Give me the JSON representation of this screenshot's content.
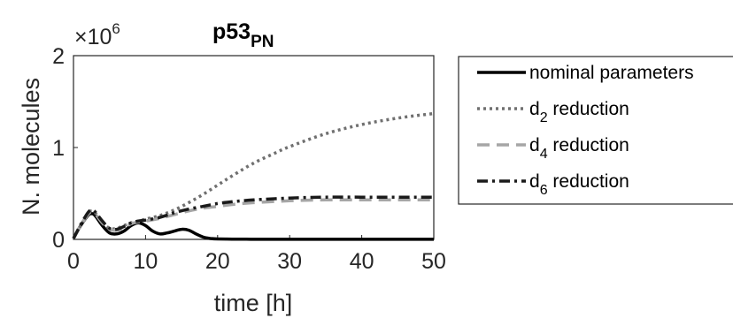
{
  "chart_data": {
    "type": "line",
    "title": "p53",
    "title_subscript": "PN",
    "xlabel": "time [h]",
    "ylabel": "N. molecules",
    "y_multiplier": "×10",
    "y_multiplier_exp": "6",
    "xlim": [
      0,
      50
    ],
    "ylim": [
      0,
      2000000
    ],
    "x_ticks": [
      0,
      10,
      20,
      30,
      40,
      50
    ],
    "x_tick_labels": [
      "0",
      "10",
      "20",
      "30",
      "40",
      "50"
    ],
    "y_ticks": [
      0,
      1000000,
      2000000
    ],
    "y_tick_labels": [
      "0",
      "1",
      "2"
    ],
    "grid": false,
    "legend_position": "outside right",
    "series": [
      {
        "name": "nominal parameters",
        "name_subscript": "",
        "name_prefix": "",
        "name_suffix": "",
        "color": "#000000",
        "dash": "solid",
        "x": [
          0,
          1,
          2,
          2.5,
          3,
          4,
          5,
          6,
          7,
          8,
          9,
          10,
          11,
          12,
          13,
          14,
          15,
          16,
          17,
          18,
          19,
          20,
          22,
          24,
          26,
          30,
          35,
          40,
          45,
          50
        ],
        "y": [
          10000,
          150000,
          260000,
          280000,
          260000,
          150000,
          70000,
          60000,
          90000,
          150000,
          180000,
          150000,
          90000,
          60000,
          70000,
          90000,
          110000,
          100000,
          60000,
          25000,
          10000,
          5000,
          3000,
          2000,
          1000,
          1000,
          1000,
          1000,
          1000,
          1000
        ]
      },
      {
        "name": "d reduction",
        "name_prefix": "d",
        "name_subscript": "2",
        "name_suffix": " reduction",
        "color": "#707070",
        "dash": "dotted",
        "x": [
          0,
          1,
          2,
          2.5,
          3,
          4,
          5,
          6,
          7,
          8,
          9,
          10,
          12,
          14,
          16,
          18,
          20,
          22,
          25,
          28,
          30,
          35,
          40,
          45,
          50
        ],
        "y": [
          10000,
          150000,
          280000,
          310000,
          290000,
          190000,
          120000,
          120000,
          150000,
          180000,
          200000,
          220000,
          260000,
          320000,
          400000,
          490000,
          590000,
          690000,
          830000,
          940000,
          1010000,
          1150000,
          1250000,
          1320000,
          1370000
        ]
      },
      {
        "name": "d reduction",
        "name_prefix": "d",
        "name_subscript": "4",
        "name_suffix": " reduction",
        "color": "#a6a6a6",
        "dash": "dashed",
        "x": [
          0,
          1,
          2,
          2.5,
          3,
          4,
          5,
          6,
          7,
          8,
          9,
          10,
          12,
          14,
          16,
          18,
          20,
          22,
          25,
          30,
          35,
          40,
          45,
          50
        ],
        "y": [
          10000,
          150000,
          270000,
          300000,
          280000,
          180000,
          110000,
          100000,
          130000,
          170000,
          190000,
          200000,
          230000,
          270000,
          310000,
          340000,
          360000,
          380000,
          400000,
          420000,
          430000,
          430000,
          430000,
          430000
        ]
      },
      {
        "name": "d reduction",
        "name_prefix": "d",
        "name_subscript": "6",
        "name_suffix": " reduction",
        "color": "#1a1a1a",
        "dash": "dashdot",
        "x": [
          0,
          1,
          2,
          2.5,
          3,
          4,
          5,
          6,
          7,
          8,
          9,
          10,
          12,
          14,
          16,
          18,
          20,
          22,
          25,
          30,
          35,
          40,
          45,
          50
        ],
        "y": [
          10000,
          160000,
          290000,
          320000,
          300000,
          200000,
          120000,
          110000,
          140000,
          180000,
          200000,
          210000,
          240000,
          290000,
          330000,
          360000,
          390000,
          410000,
          430000,
          450000,
          460000,
          460000,
          460000,
          460000
        ]
      }
    ]
  }
}
